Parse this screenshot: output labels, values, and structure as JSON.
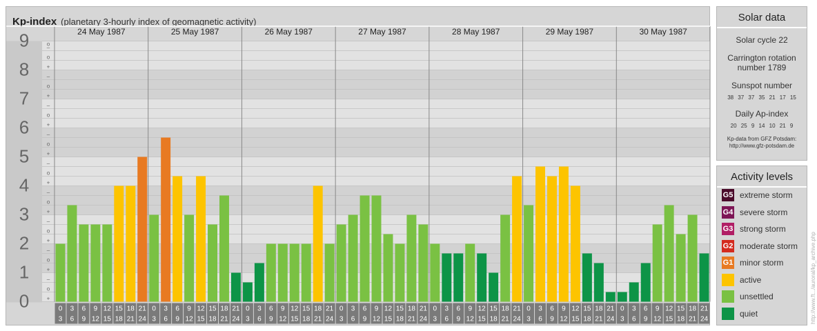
{
  "header": {
    "title": "Kp-index",
    "subtitle": "(planetary 3-hourly index of geomagnetic activity)"
  },
  "chart_data": {
    "type": "bar",
    "ylim": [
      0,
      9
    ],
    "y_ticks": [
      "0",
      "1",
      "2",
      "3",
      "4",
      "5",
      "6",
      "7",
      "8",
      "9"
    ],
    "sub_ticks": [
      "+",
      "o",
      "–"
    ],
    "days": [
      "24 May 1987",
      "25 May 1987",
      "26 May 1987",
      "27 May 1987",
      "28 May 1987",
      "29 May 1987",
      "30 May 1987"
    ],
    "interval_start_labels": [
      "0",
      "3",
      "6",
      "9",
      "12",
      "15",
      "18",
      "21"
    ],
    "interval_end_labels": [
      "3",
      "6",
      "9",
      "12",
      "15",
      "18",
      "21",
      "24"
    ],
    "values": [
      [
        2.0,
        3.333,
        2.667,
        2.667,
        2.667,
        4.0,
        4.0,
        5.0
      ],
      [
        3.0,
        5.667,
        4.333,
        3.0,
        4.333,
        2.667,
        3.667,
        1.0
      ],
      [
        0.667,
        1.333,
        2.0,
        2.0,
        2.0,
        2.0,
        4.0,
        2.0
      ],
      [
        2.667,
        3.0,
        3.667,
        3.667,
        2.333,
        2.0,
        3.0,
        2.667
      ],
      [
        2.0,
        1.667,
        1.667,
        2.0,
        1.667,
        1.0,
        3.0,
        4.333
      ],
      [
        3.333,
        4.667,
        4.333,
        4.667,
        4.0,
        1.667,
        1.333,
        0.333
      ],
      [
        0.333,
        0.667,
        1.333,
        2.667,
        3.333,
        2.333,
        3.0,
        1.667
      ]
    ],
    "grid": true
  },
  "colors": {
    "quiet": "#0d9447",
    "unsettled": "#7ac143",
    "active": "#fdc400",
    "minor_storm": "#e87a22",
    "moderate_storm": "#d42b1e",
    "strong_storm": "#b11e65",
    "severe_storm": "#7d1555",
    "extreme_storm": "#4a0a2a"
  },
  "solar": {
    "title": "Solar data",
    "solar_cycle": "Solar cycle 22",
    "carrington_line1": "Carrington rotation",
    "carrington_line2": "number 1789",
    "sunspot_title": "Sunspot number",
    "sunspot_values": "38 37 37 35 21 17 15",
    "ap_title": "Daily Ap-index",
    "ap_values": "20 25 9 14 10 21 9",
    "credit_line1": "Kp-data from GFZ Potsdam:",
    "credit_line2": "http://www.gfz-potsdam.de"
  },
  "activity": {
    "title": "Activity levels",
    "levels": [
      {
        "badge": "G5",
        "label": "extreme storm",
        "color": "#4a0a2a"
      },
      {
        "badge": "G4",
        "label": "severe storm",
        "color": "#7d1555"
      },
      {
        "badge": "G3",
        "label": "strong storm",
        "color": "#b11e65"
      },
      {
        "badge": "G2",
        "label": "moderate storm",
        "color": "#d42b1e"
      },
      {
        "badge": "G1",
        "label": "minor storm",
        "color": "#e87a22"
      },
      {
        "badge": "",
        "label": "active",
        "color": "#fdc400"
      },
      {
        "badge": "",
        "label": "unsettled",
        "color": "#7ac143"
      },
      {
        "badge": "",
        "label": "quiet",
        "color": "#0d9447"
      }
    ]
  },
  "watermark": "http://www.ft.../auroral/kp_archive.php"
}
